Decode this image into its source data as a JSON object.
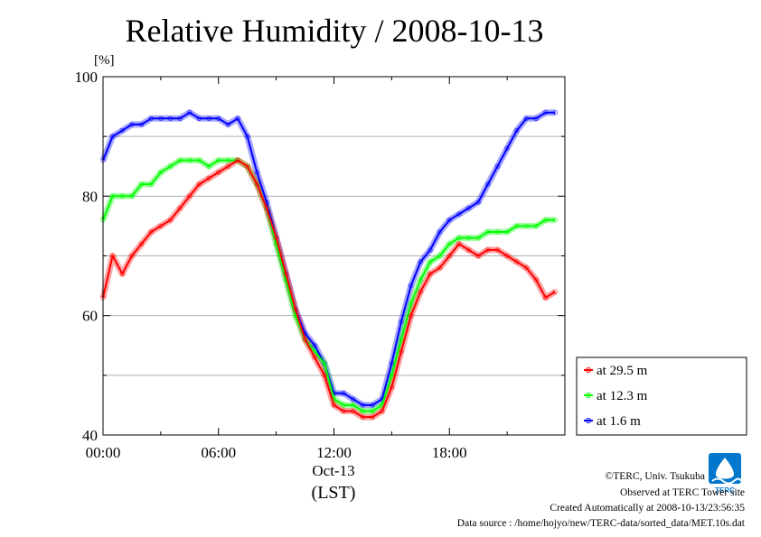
{
  "chart_data": {
    "type": "line",
    "title": "Relative Humidity / 2008-10-13",
    "yunit": "[%]",
    "ylim": [
      40,
      100
    ],
    "yticks": [
      "40",
      "60",
      "80",
      "100"
    ],
    "xticks": [
      "00:00",
      "06:00",
      "12:00",
      "18:00"
    ],
    "xdate": "Oct-13",
    "xlabel": "(LST)",
    "grid": true,
    "legend_position": "bottom-right",
    "x_hours": [
      0,
      0.5,
      1,
      1.5,
      2,
      2.5,
      3,
      3.5,
      4,
      4.5,
      5,
      5.5,
      6,
      6.5,
      7,
      7.5,
      8,
      8.5,
      9,
      9.5,
      10,
      10.5,
      11,
      11.5,
      12,
      12.5,
      13,
      13.5,
      14,
      14.5,
      15,
      15.5,
      16,
      16.5,
      17,
      17.5,
      18,
      18.5,
      19,
      19.5,
      20,
      20.5,
      21,
      21.5,
      22,
      22.5,
      23,
      23.5
    ],
    "series": [
      {
        "name": "at 29.5 m",
        "color": "#ff0000",
        "values": [
          63,
          70,
          67,
          70,
          72,
          74,
          75,
          76,
          78,
          80,
          82,
          83,
          84,
          85,
          86,
          85,
          82,
          78,
          73,
          67,
          61,
          56,
          53,
          50,
          45,
          44,
          44,
          43,
          43,
          44,
          48,
          54,
          60,
          64,
          67,
          68,
          70,
          72,
          71,
          70,
          71,
          71,
          70,
          69,
          68,
          66,
          63,
          64
        ]
      },
      {
        "name": "at 12.3 m",
        "color": "#00ff00",
        "values": [
          76,
          80,
          80,
          80,
          82,
          82,
          84,
          85,
          86,
          86,
          86,
          85,
          86,
          86,
          86,
          85,
          82,
          78,
          72,
          66,
          60,
          56,
          54,
          52,
          46,
          45,
          45,
          44,
          44,
          45,
          50,
          56,
          62,
          66,
          69,
          70,
          72,
          73,
          73,
          73,
          74,
          74,
          74,
          75,
          75,
          75,
          76,
          76
        ]
      },
      {
        "name": "at 1.6 m",
        "color": "#0000ff",
        "values": [
          86,
          90,
          91,
          92,
          92,
          93,
          93,
          93,
          93,
          94,
          93,
          93,
          93,
          92,
          93,
          90,
          84,
          79,
          73,
          67,
          61,
          57,
          55,
          52,
          47,
          47,
          46,
          45,
          45,
          46,
          52,
          59,
          65,
          69,
          71,
          74,
          76,
          77,
          78,
          79,
          82,
          85,
          88,
          91,
          93,
          93,
          94,
          94
        ]
      }
    ]
  },
  "logo": {
    "text": "TERC",
    "color": "#0077cc"
  },
  "footer": {
    "copyright": "©TERC, Univ. Tsukuba",
    "site": "Observed at TERC Tower site",
    "created": "Created Automatically at 2008-10-13/23:56:35",
    "source": "Data source : /home/hojyo/new/TERC-data/sorted_data/MET.10s.dat"
  }
}
